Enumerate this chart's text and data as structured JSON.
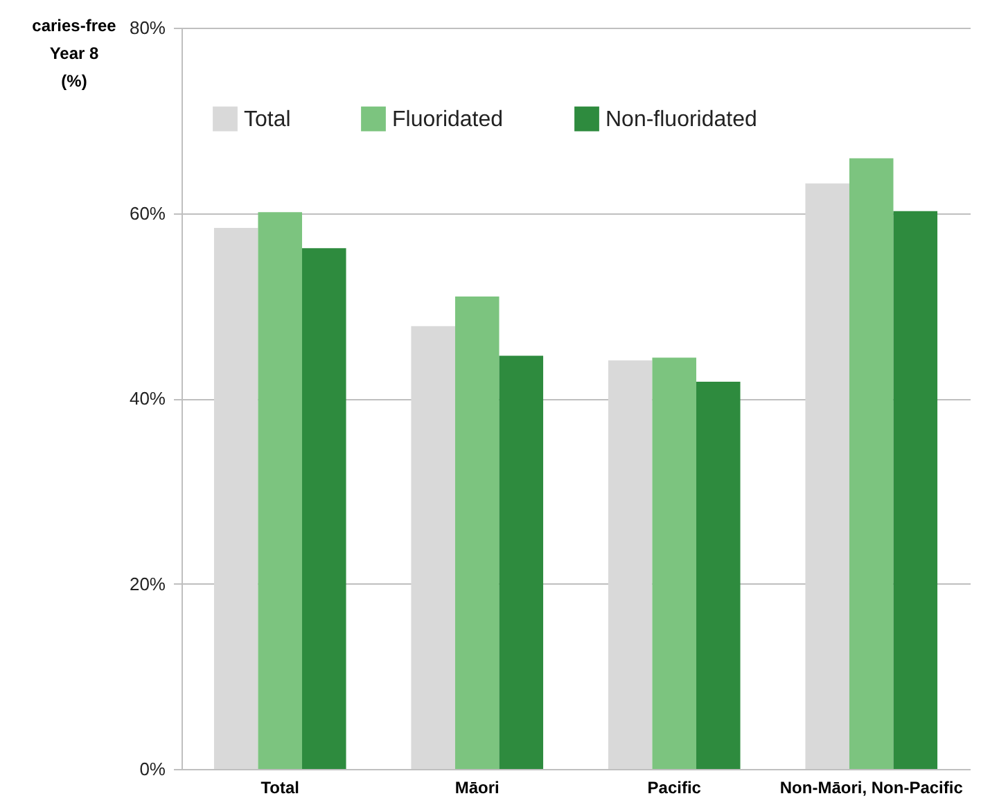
{
  "chart_data": {
    "type": "bar",
    "ylabel": "caries-free\nYear 8\n(%)",
    "categories": [
      "Total",
      "Māori",
      "Pacific",
      "Non-Māori, Non-Pacific"
    ],
    "series": [
      {
        "name": "Total",
        "color": "#d9d9d9",
        "values": [
          58.4,
          47.8,
          44.1,
          63.2
        ]
      },
      {
        "name": "Fluoridated",
        "color": "#7cc47f",
        "values": [
          60.1,
          51.0,
          44.4,
          65.9
        ]
      },
      {
        "name": "Non-fluoridated",
        "color": "#2e8b3e",
        "values": [
          56.2,
          44.6,
          41.8,
          60.2
        ]
      }
    ],
    "ylim": [
      0,
      80
    ],
    "yticks": [
      {
        "value": 0,
        "label": "0%"
      },
      {
        "value": 20,
        "label": "20%"
      },
      {
        "value": 40,
        "label": "40%"
      },
      {
        "value": 60,
        "label": "60%"
      },
      {
        "value": 80,
        "label": "80%"
      }
    ],
    "grid": "y",
    "legend": "top left"
  }
}
